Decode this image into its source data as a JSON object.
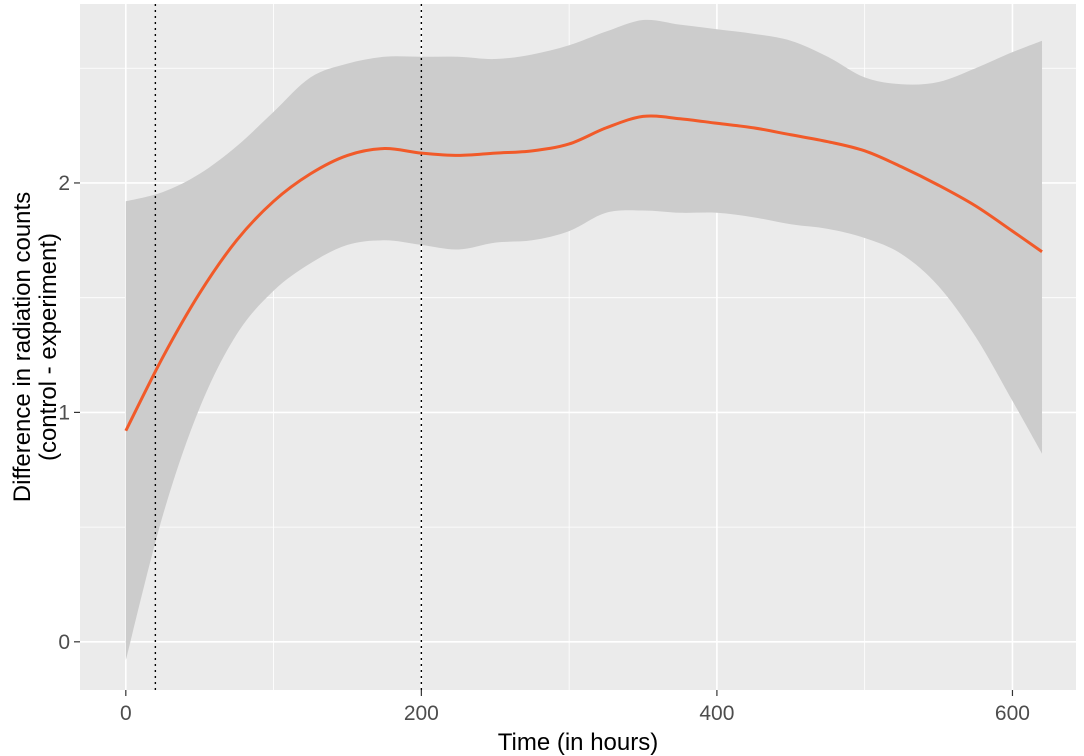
{
  "chart_data": {
    "type": "line",
    "title": "",
    "xlabel": "Time (in hours)",
    "ylabel": [
      "Difference in radiation counts",
      "(control - experiment)"
    ],
    "xlim": [
      -31,
      643
    ],
    "ylim": [
      -0.21,
      2.78
    ],
    "x_ticks": [
      0,
      200,
      400,
      600
    ],
    "x_minor_ticks": [
      100,
      300,
      500
    ],
    "y_ticks": [
      0,
      1,
      2
    ],
    "y_minor_ticks": [
      0.5,
      1.5,
      2.5
    ],
    "x_tick_labels": [
      "0",
      "200",
      "400",
      "600"
    ],
    "y_tick_labels": [
      "0",
      "1",
      "2"
    ],
    "grid": true,
    "legend": "none",
    "reference_lines_x": [
      20,
      200
    ],
    "colors": {
      "panel": "#ebebeb",
      "grid": "#ffffff",
      "ribbon": "#cccccc",
      "line": "#f15a29",
      "reference": "#000000"
    },
    "series": [
      {
        "x": [
          0,
          25,
          50,
          75,
          100,
          125,
          150,
          175,
          200,
          225,
          250,
          275,
          300,
          325,
          350,
          375,
          400,
          425,
          450,
          475,
          500,
          525,
          550,
          575,
          600,
          620
        ],
        "y": [
          0.92,
          1.24,
          1.52,
          1.75,
          1.92,
          2.04,
          2.12,
          2.15,
          2.13,
          2.12,
          2.13,
          2.14,
          2.17,
          2.24,
          2.29,
          2.28,
          2.26,
          2.24,
          2.21,
          2.18,
          2.14,
          2.07,
          1.99,
          1.9,
          1.79,
          1.7
        ],
        "ymin": [
          -0.08,
          0.55,
          1.02,
          1.34,
          1.53,
          1.65,
          1.73,
          1.75,
          1.73,
          1.71,
          1.74,
          1.75,
          1.79,
          1.87,
          1.88,
          1.87,
          1.87,
          1.85,
          1.82,
          1.8,
          1.76,
          1.69,
          1.55,
          1.33,
          1.05,
          0.82
        ],
        "ymax": [
          1.92,
          1.96,
          2.04,
          2.16,
          2.31,
          2.46,
          2.52,
          2.55,
          2.55,
          2.55,
          2.54,
          2.56,
          2.6,
          2.66,
          2.71,
          2.69,
          2.67,
          2.65,
          2.62,
          2.55,
          2.46,
          2.43,
          2.44,
          2.5,
          2.57,
          2.62
        ]
      }
    ]
  }
}
